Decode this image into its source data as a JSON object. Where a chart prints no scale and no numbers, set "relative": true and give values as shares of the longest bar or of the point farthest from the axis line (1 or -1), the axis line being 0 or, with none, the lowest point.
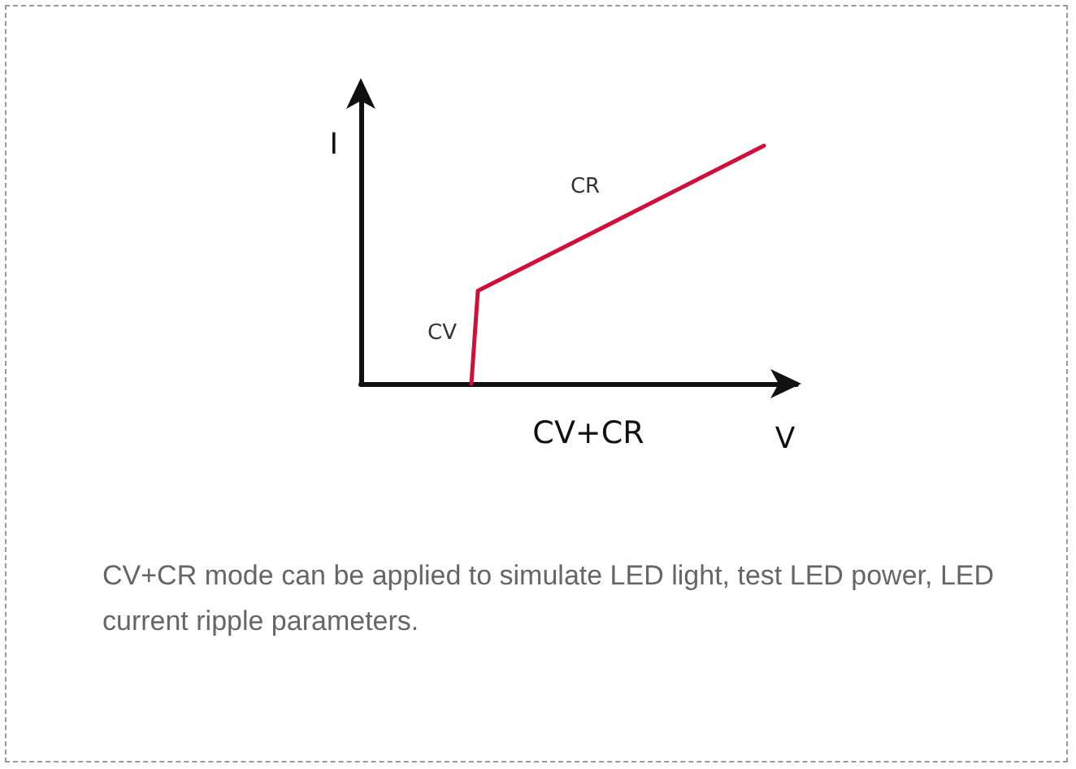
{
  "chart_data": {
    "type": "line",
    "relative": true,
    "title": "CV+CR",
    "ylabel": "I",
    "categories": [
      null,
      null,
      null,
      null,
      null,
      null,
      null,
      null,
      null,
      null,
      null,
      null,
      null,
      null,
      null,
      null,
      null,
      null,
      null,
      null,
      null,
      null,
      null,
      null,
      null,
      null,
      null,
      null,
      null,
      null,
      null,
      null,
      null,
      null,
      null,
      null,
      null,
      null,
      null,
      null,
      null,
      null,
      null,
      null,
      null,
      null,
      null,
      null,
      null,
      null,
      null,
      null,
      null,
      null,
      null,
      null,
      null,
      null,
      null,
      null,
      null,
      null,
      null,
      null,
      null,
      null,
      null,
      null
    ],
    "series": [
      {
        "color": "#d0103a",
        "values": [
          null,
          null,
          null,
          null,
          null,
          null,
          null,
          null,
          null,
          null,
          null,
          null,
          null,
          null,
          null,
          null,
          null,
          0,
          0.39,
          null,
          null,
          null,
          null,
          null,
          null,
          null,
          null,
          null,
          null,
          null,
          null,
          null,
          null,
          null,
          null,
          null,
          null,
          null,
          null,
          null,
          null,
          null,
          null,
          null,
          null,
          null,
          null,
          null,
          null,
          null,
          null,
          null,
          null,
          null,
          null,
          null,
          null,
          null,
          null,
          null,
          null,
          null,
          1,
          null,
          null,
          null,
          null,
          null
        ]
      }
    ],
    "annotations": [
      "CR",
      "CV",
      "V",
      "CV+CR mode can be applied to simulate LED light, test LED power, LED current ripple parameters."
    ],
    "marker": "none",
    "line_style": "solid"
  }
}
